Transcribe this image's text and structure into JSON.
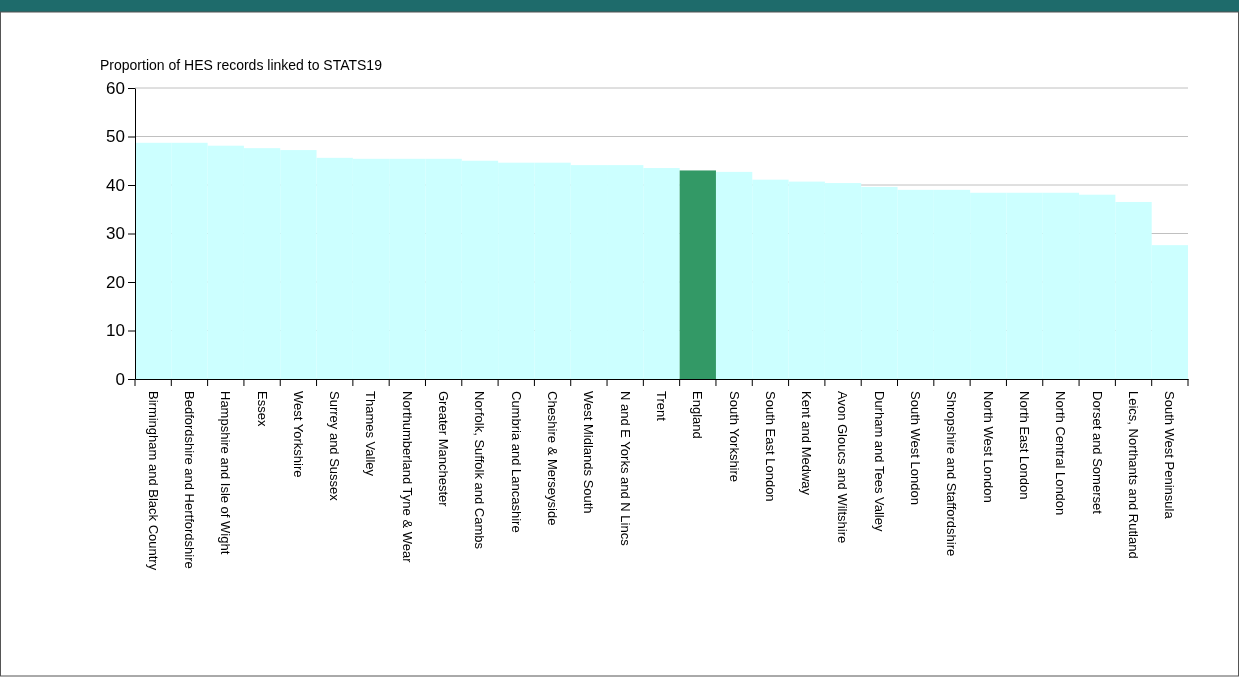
{
  "chart_data": {
    "type": "bar",
    "ylabel": "Proportion of HES records linked to STATS19",
    "categories": [
      "Birmingham and Black Country",
      "Bedfordshire and Hertfordshire",
      "Hampshire and Isle of Wight",
      "Essex",
      "West Yorkshire",
      "Surrey and Sussex",
      "Thames Valley",
      "Northumberland Tyne & Wear",
      "Greater Manchester",
      "Norfolk, Suffolk and Cambs",
      "Cumbria and Lancashire",
      "Cheshire & Merseyside",
      "West Midlands South",
      "N and E Yorks and N Lincs",
      "Trent",
      "England",
      "South Yorkshire",
      "South East London",
      "Kent and Medway",
      "Avon Gloucs and Wiltshire",
      "Durham and Tees Valley",
      "South West London",
      "Shropshire and Staffordshire",
      "North West London",
      "North East London",
      "North Central London",
      "Dorset and Somerset",
      "Leics, Northants and Rutland",
      "South West Peninsula"
    ],
    "values": [
      48.7,
      48.7,
      48.1,
      47.6,
      47.2,
      45.6,
      45.4,
      45.4,
      45.4,
      45.0,
      44.6,
      44.6,
      44.1,
      44.1,
      43.5,
      43.0,
      42.7,
      41.1,
      40.7,
      40.4,
      39.6,
      39.0,
      39.0,
      38.4,
      38.4,
      38.4,
      38.0,
      36.5,
      27.6
    ],
    "colors": [
      "#ccffff",
      "#ccffff",
      "#ccffff",
      "#ccffff",
      "#ccffff",
      "#ccffff",
      "#ccffff",
      "#ccffff",
      "#ccffff",
      "#ccffff",
      "#ccffff",
      "#ccffff",
      "#ccffff",
      "#ccffff",
      "#ccffff",
      "#339966",
      "#ccffff",
      "#ccffff",
      "#ccffff",
      "#ccffff",
      "#ccffff",
      "#ccffff",
      "#ccffff",
      "#ccffff",
      "#ccffff",
      "#ccffff",
      "#ccffff",
      "#ccffff",
      "#ccffff"
    ],
    "ylim": [
      0,
      60
    ],
    "yticks": [
      0,
      10,
      20,
      30,
      40,
      50,
      60
    ],
    "grid": "y"
  }
}
